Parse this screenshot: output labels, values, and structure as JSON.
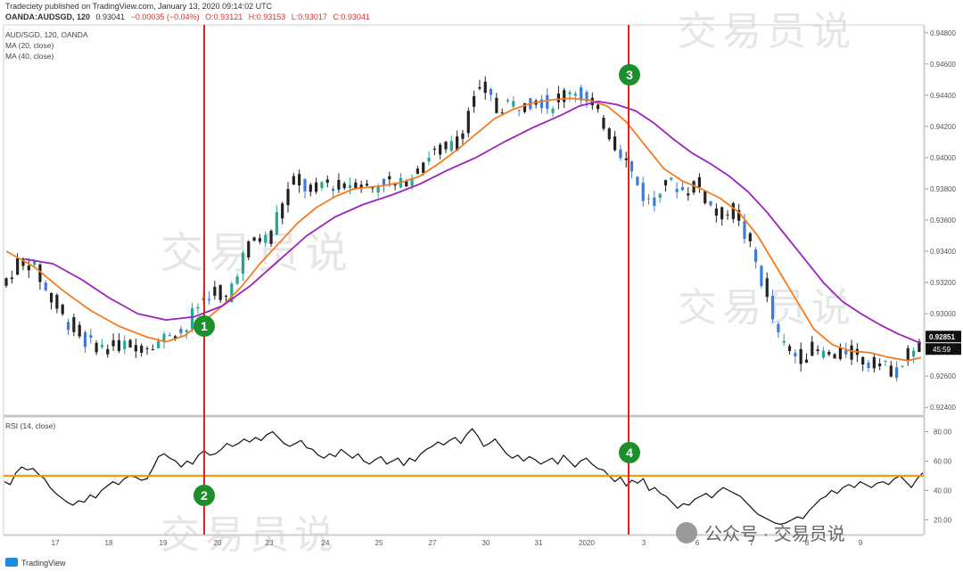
{
  "header": {
    "published": "Tradeciety published on TradingView.com, January 13, 2020 09:14:02 UTC",
    "symbol": "OANDA:AUDSGD, 120",
    "o": "O:0.93121",
    "h": "H:0.93153",
    "l": "L:0.93017",
    "c": "C:0.93041",
    "last": "0.93041",
    "change": "−0.00035 (−0.04%)"
  },
  "legend": {
    "title": "AUD/SGD, 120, OANDA",
    "ma20": "MA (20, close)",
    "ma40": "MA (40, close)",
    "rsi": "RSI (14, close)"
  },
  "price_label": "0.92851",
  "countdown": "45:59",
  "watermark": "交易员说",
  "wechat_badge": "公众号 · 交易员说",
  "footer_brand": "TradingView",
  "markers": [
    "1",
    "2",
    "3",
    "4"
  ],
  "colors": {
    "up": "#26a69a",
    "down": "#3d7bd8",
    "candle_black": "#222222",
    "ma20": "#f57c20",
    "ma40": "#a020c0",
    "vline": "#e0221f",
    "hline": "#f59a0a",
    "marker": "#1a8f2c",
    "price_tag": "#111111"
  },
  "chart_data": [
    {
      "type": "candlestick",
      "title": "AUD/SGD, 120, OANDA",
      "ylim": [
        0.9235,
        0.9485
      ],
      "y_ticks": [
        "0.94800",
        "0.94600",
        "0.94400",
        "0.94200",
        "0.94000",
        "0.93800",
        "0.93600",
        "0.93400",
        "0.93200",
        "0.93000",
        "0.92600",
        "0.92400"
      ],
      "x_ticks": [
        "17",
        "18",
        "19",
        "20",
        "23",
        "24",
        "25",
        "27",
        "30",
        "31",
        "2020",
        "3",
        "6",
        "7",
        "8",
        "9"
      ],
      "close_path": [
        [
          0,
          0.9318
        ],
        [
          5,
          0.9325
        ],
        [
          10,
          0.9335
        ],
        [
          18,
          0.933
        ],
        [
          25,
          0.9312
        ],
        [
          35,
          0.9295
        ],
        [
          45,
          0.9282
        ],
        [
          55,
          0.9278
        ],
        [
          65,
          0.9281
        ],
        [
          75,
          0.9279
        ],
        [
          85,
          0.9283
        ],
        [
          92,
          0.929
        ],
        [
          98,
          0.9287
        ],
        [
          102,
          0.93
        ],
        [
          108,
          0.931
        ],
        [
          114,
          0.9315
        ],
        [
          118,
          0.9304
        ],
        [
          124,
          0.9322
        ],
        [
          130,
          0.934
        ],
        [
          136,
          0.935
        ],
        [
          142,
          0.9348
        ],
        [
          150,
          0.9372
        ],
        [
          158,
          0.939
        ],
        [
          164,
          0.9375
        ],
        [
          172,
          0.9385
        ],
        [
          180,
          0.938
        ],
        [
          188,
          0.9385
        ],
        [
          196,
          0.938
        ],
        [
          204,
          0.9385
        ],
        [
          212,
          0.9382
        ],
        [
          220,
          0.939
        ],
        [
          226,
          0.94
        ],
        [
          232,
          0.9405
        ],
        [
          240,
          0.9408
        ],
        [
          246,
          0.942
        ],
        [
          252,
          0.944
        ],
        [
          258,
          0.9445
        ],
        [
          264,
          0.943
        ],
        [
          270,
          0.9435
        ],
        [
          278,
          0.9433
        ],
        [
          286,
          0.9438
        ],
        [
          292,
          0.9432
        ],
        [
          298,
          0.944
        ],
        [
          304,
          0.9445
        ],
        [
          310,
          0.9438
        ],
        [
          316,
          0.943
        ],
        [
          322,
          0.942
        ],
        [
          326,
          0.941
        ],
        [
          332,
          0.94
        ],
        [
          336,
          0.939
        ],
        [
          342,
          0.9375
        ],
        [
          348,
          0.937
        ],
        [
          352,
          0.9385
        ],
        [
          358,
          0.9383
        ],
        [
          364,
          0.9378
        ],
        [
          370,
          0.9385
        ],
        [
          376,
          0.9372
        ],
        [
          382,
          0.9362
        ],
        [
          388,
          0.9368
        ],
        [
          394,
          0.9355
        ],
        [
          400,
          0.934
        ],
        [
          404,
          0.9325
        ],
        [
          410,
          0.93
        ],
        [
          414,
          0.9285
        ],
        [
          420,
          0.9275
        ],
        [
          426,
          0.9272
        ],
        [
          432,
          0.9278
        ],
        [
          438,
          0.9274
        ],
        [
          444,
          0.9273
        ],
        [
          450,
          0.9276
        ],
        [
          456,
          0.9272
        ],
        [
          462,
          0.9268
        ],
        [
          466,
          0.927
        ],
        [
          472,
          0.9265
        ],
        [
          478,
          0.9262
        ],
        [
          483,
          0.9275
        ],
        [
          487,
          0.928
        ]
      ],
      "series": [
        {
          "name": "MA (20, close)",
          "points": [
            [
              0,
              0.934
            ],
            [
              15,
              0.933
            ],
            [
              30,
              0.9315
            ],
            [
              45,
              0.9302
            ],
            [
              60,
              0.9292
            ],
            [
              75,
              0.9285
            ],
            [
              85,
              0.9282
            ],
            [
              95,
              0.9286
            ],
            [
              105,
              0.9295
            ],
            [
              115,
              0.9305
            ],
            [
              125,
              0.9317
            ],
            [
              135,
              0.9332
            ],
            [
              145,
              0.9345
            ],
            [
              155,
              0.9358
            ],
            [
              165,
              0.9368
            ],
            [
              175,
              0.9375
            ],
            [
              185,
              0.938
            ],
            [
              200,
              0.9382
            ],
            [
              210,
              0.9384
            ],
            [
              220,
              0.9388
            ],
            [
              230,
              0.9396
            ],
            [
              240,
              0.9405
            ],
            [
              250,
              0.9415
            ],
            [
              260,
              0.9425
            ],
            [
              270,
              0.9431
            ],
            [
              280,
              0.9435
            ],
            [
              290,
              0.9437
            ],
            [
              300,
              0.9438
            ],
            [
              310,
              0.9437
            ],
            [
              320,
              0.9433
            ],
            [
              330,
              0.9423
            ],
            [
              340,
              0.9408
            ],
            [
              350,
              0.9393
            ],
            [
              360,
              0.9385
            ],
            [
              370,
              0.938
            ],
            [
              380,
              0.9374
            ],
            [
              390,
              0.9365
            ],
            [
              400,
              0.935
            ],
            [
              410,
              0.933
            ],
            [
              420,
              0.931
            ],
            [
              430,
              0.929
            ],
            [
              440,
              0.928
            ],
            [
              450,
              0.9276
            ],
            [
              460,
              0.9275
            ],
            [
              470,
              0.9272
            ],
            [
              480,
              0.927
            ],
            [
              487,
              0.9272
            ]
          ]
        },
        {
          "name": "MA (40, close)",
          "points": [
            [
              10,
              0.9335
            ],
            [
              25,
              0.9332
            ],
            [
              40,
              0.9322
            ],
            [
              55,
              0.931
            ],
            [
              70,
              0.93
            ],
            [
              85,
              0.9296
            ],
            [
              100,
              0.9298
            ],
            [
              115,
              0.9305
            ],
            [
              130,
              0.9318
            ],
            [
              145,
              0.9334
            ],
            [
              160,
              0.935
            ],
            [
              175,
              0.9362
            ],
            [
              190,
              0.937
            ],
            [
              205,
              0.9376
            ],
            [
              220,
              0.9383
            ],
            [
              235,
              0.9392
            ],
            [
              250,
              0.94
            ],
            [
              265,
              0.941
            ],
            [
              280,
              0.9419
            ],
            [
              295,
              0.9427
            ],
            [
              305,
              0.9433
            ],
            [
              315,
              0.9436
            ],
            [
              325,
              0.9434
            ],
            [
              335,
              0.943
            ],
            [
              345,
              0.9422
            ],
            [
              355,
              0.9412
            ],
            [
              365,
              0.9403
            ],
            [
              375,
              0.9396
            ],
            [
              385,
              0.9388
            ],
            [
              395,
              0.9378
            ],
            [
              405,
              0.9365
            ],
            [
              415,
              0.935
            ],
            [
              425,
              0.9335
            ],
            [
              435,
              0.932
            ],
            [
              445,
              0.9308
            ],
            [
              455,
              0.93
            ],
            [
              465,
              0.9293
            ],
            [
              475,
              0.9287
            ],
            [
              487,
              0.9281
            ]
          ]
        }
      ]
    },
    {
      "type": "line",
      "title": "RSI (14, close)",
      "ylim": [
        10,
        90
      ],
      "y_ticks": [
        "80.00",
        "60.00",
        "40.00",
        "20.00"
      ],
      "level": 50,
      "values": [
        46,
        44,
        52,
        56,
        54,
        55,
        51,
        48,
        42,
        38,
        35,
        32,
        30,
        33,
        32,
        37,
        35,
        40,
        43,
        46,
        44,
        48,
        50,
        49,
        47,
        48,
        55,
        63,
        65,
        62,
        60,
        56,
        60,
        58,
        64,
        67,
        64,
        65,
        68,
        72,
        70,
        72,
        75,
        73,
        76,
        74,
        78,
        80,
        76,
        72,
        70,
        72,
        74,
        69,
        68,
        64,
        62,
        65,
        63,
        68,
        65,
        62,
        65,
        60,
        58,
        61,
        63,
        58,
        60,
        62,
        57,
        62,
        60,
        65,
        68,
        70,
        73,
        71,
        74,
        76,
        72,
        78,
        82,
        77,
        70,
        72,
        75,
        70,
        65,
        62,
        64,
        60,
        63,
        61,
        58,
        60,
        62,
        58,
        64,
        60,
        56,
        60,
        62,
        58,
        55,
        54,
        50,
        46,
        49,
        43,
        47,
        45,
        48,
        40,
        42,
        38,
        36,
        32,
        28,
        31,
        30,
        34,
        36,
        38,
        35,
        39,
        42,
        40,
        38,
        36,
        32,
        28,
        24,
        22,
        20,
        18,
        17,
        18,
        20,
        22,
        21,
        26,
        30,
        34,
        36,
        40,
        38,
        42,
        44,
        42,
        46,
        44,
        42,
        45,
        46,
        44,
        48,
        50,
        46,
        42,
        48,
        52
      ]
    }
  ]
}
